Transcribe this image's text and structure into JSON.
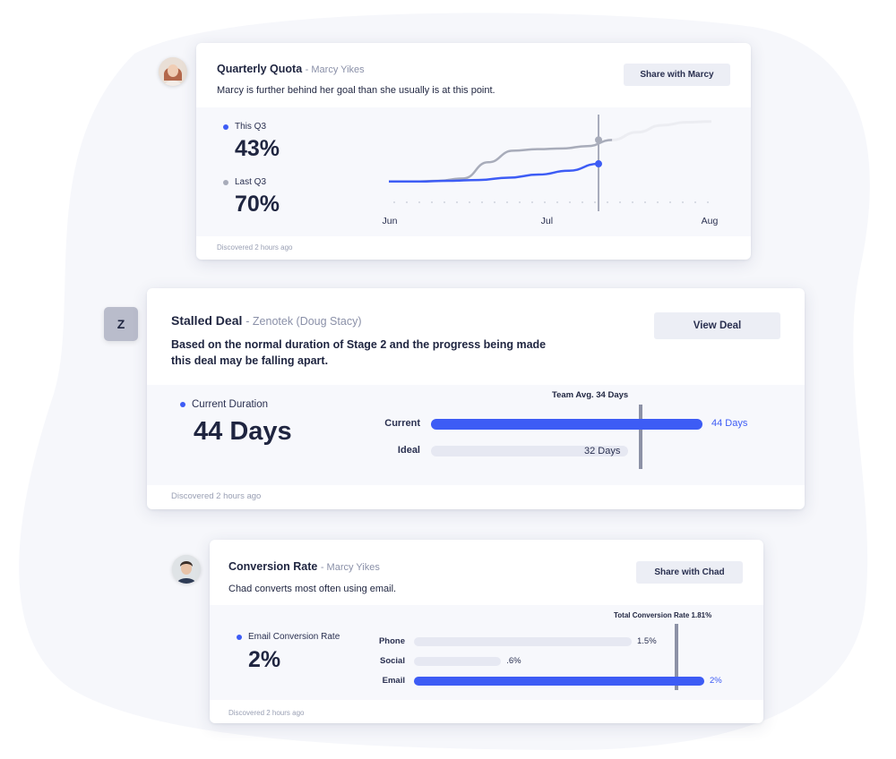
{
  "colors": {
    "accent": "#3d5cf5",
    "muted": "#a8acba",
    "text": "#1f2540"
  },
  "quota": {
    "title": "Quarterly Quota",
    "person": "- Marcy Yikes",
    "description": "Marcy is further behind her goal than she usually is at this point.",
    "button": "Share with Marcy",
    "this_label": "This Q3",
    "this_value": "43%",
    "last_label": "Last Q3",
    "last_value": "70%",
    "footer": "Discovered 2 hours ago",
    "chart_data": {
      "type": "line",
      "x_ticks": [
        "Jun",
        "Jul",
        "Aug"
      ],
      "series": [
        {
          "name": "This Q3",
          "color": "#3d5cf5",
          "values": [
            0.2,
            0.2,
            0.21,
            0.22,
            0.25,
            0.29,
            0.34,
            0.43
          ]
        },
        {
          "name": "Last Q3",
          "color": "#a8acba",
          "values": [
            0.2,
            0.2,
            0.21,
            0.24,
            0.45,
            0.6,
            0.62,
            0.63,
            0.66,
            0.74,
            0.84,
            0.93,
            0.97,
            0.98
          ]
        }
      ],
      "ylim": [
        0,
        1
      ],
      "current_marker": "Jul (mid)"
    }
  },
  "stalled": {
    "badge": "Z",
    "title": "Stalled Deal",
    "company": "- Zenotek (Doug Stacy)",
    "description": "Based on the normal duration of Stage 2 and the progress being made this deal may be falling apart.",
    "button": "View Deal",
    "metric_label": "Current Duration",
    "metric_value": "44 Days",
    "footer": "Discovered 2 hours ago",
    "chart_data": {
      "type": "bar",
      "orientation": "horizontal",
      "categories": [
        "Current",
        "Ideal"
      ],
      "values": [
        44,
        32
      ],
      "value_labels": [
        "44 Days",
        "32 Days"
      ],
      "reference": {
        "label": "Team Avg. 34 Days",
        "value": 34
      },
      "xlim": [
        0,
        44
      ]
    }
  },
  "conversion": {
    "title": "Conversion Rate",
    "person": "- Marcy Yikes",
    "description": "Chad converts most often using email.",
    "button": "Share with Chad",
    "metric_label": "Email Conversion Rate",
    "metric_value": "2%",
    "footer": "Discovered 2 hours ago",
    "chart_data": {
      "type": "bar",
      "orientation": "horizontal",
      "categories": [
        "Phone",
        "Social",
        "Email"
      ],
      "values": [
        1.5,
        0.6,
        2
      ],
      "value_labels": [
        "1.5%",
        ".6%",
        "2%"
      ],
      "reference": {
        "label": "Total Conversion Rate 1.81%",
        "value": 1.81
      },
      "xlim": [
        0,
        2
      ]
    }
  }
}
